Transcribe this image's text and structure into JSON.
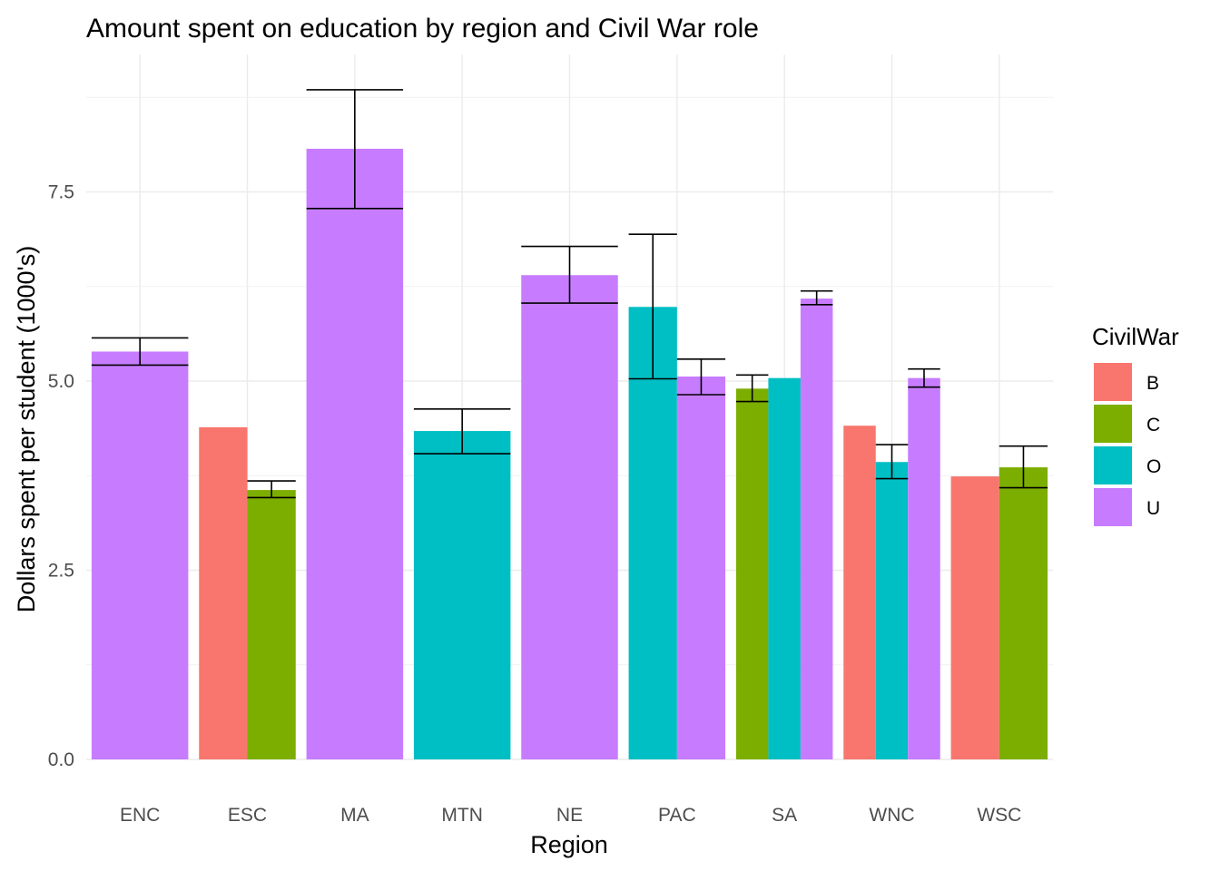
{
  "chart_data": {
    "type": "bar",
    "title": "Amount spent on education by region and Civil War role",
    "xlabel": "Region",
    "ylabel": "Dollars spent per student (1000's)",
    "categories": [
      "ENC",
      "ESC",
      "MA",
      "MTN",
      "NE",
      "PAC",
      "SA",
      "WNC",
      "WSC"
    ],
    "yticks": [
      "0.0",
      "2.5",
      "5.0",
      "7.5"
    ],
    "ylim": [
      0,
      9.0
    ],
    "grid": true,
    "legend": {
      "title": "CivilWar",
      "placement": "right",
      "entries": [
        {
          "key": "B",
          "label": "B",
          "color": "#F8766D"
        },
        {
          "key": "C",
          "label": "C",
          "color": "#7CAE00"
        },
        {
          "key": "O",
          "label": "O",
          "color": "#00BFC4"
        },
        {
          "key": "U",
          "label": "U",
          "color": "#C77CFF"
        }
      ]
    },
    "bars": [
      {
        "region": "ENC",
        "group": "U",
        "value": 5.39,
        "err": [
          5.21,
          5.57
        ]
      },
      {
        "region": "ESC",
        "group": "B",
        "value": 4.39,
        "err": null
      },
      {
        "region": "ESC",
        "group": "C",
        "value": 3.56,
        "err": [
          3.46,
          3.68
        ]
      },
      {
        "region": "MA",
        "group": "U",
        "value": 8.07,
        "err": [
          7.28,
          8.85
        ]
      },
      {
        "region": "MTN",
        "group": "O",
        "value": 4.34,
        "err": [
          4.04,
          4.63
        ]
      },
      {
        "region": "NE",
        "group": "U",
        "value": 6.4,
        "err": [
          6.03,
          6.78
        ]
      },
      {
        "region": "PAC",
        "group": "O",
        "value": 5.98,
        "err": [
          5.03,
          6.94
        ]
      },
      {
        "region": "PAC",
        "group": "U",
        "value": 5.06,
        "err": [
          4.82,
          5.29
        ]
      },
      {
        "region": "SA",
        "group": "C",
        "value": 4.9,
        "err": [
          4.73,
          5.08
        ]
      },
      {
        "region": "SA",
        "group": "O",
        "value": 5.04,
        "err": null
      },
      {
        "region": "SA",
        "group": "U",
        "value": 6.09,
        "err": [
          6.01,
          6.19
        ]
      },
      {
        "region": "WNC",
        "group": "B",
        "value": 4.41,
        "err": null
      },
      {
        "region": "WNC",
        "group": "O",
        "value": 3.93,
        "err": [
          3.71,
          4.16
        ]
      },
      {
        "region": "WNC",
        "group": "U",
        "value": 5.04,
        "err": [
          4.92,
          5.16
        ]
      },
      {
        "region": "WSC",
        "group": "B",
        "value": 3.74,
        "err": null
      },
      {
        "region": "WSC",
        "group": "C",
        "value": 3.86,
        "err": [
          3.59,
          4.14
        ]
      }
    ]
  }
}
